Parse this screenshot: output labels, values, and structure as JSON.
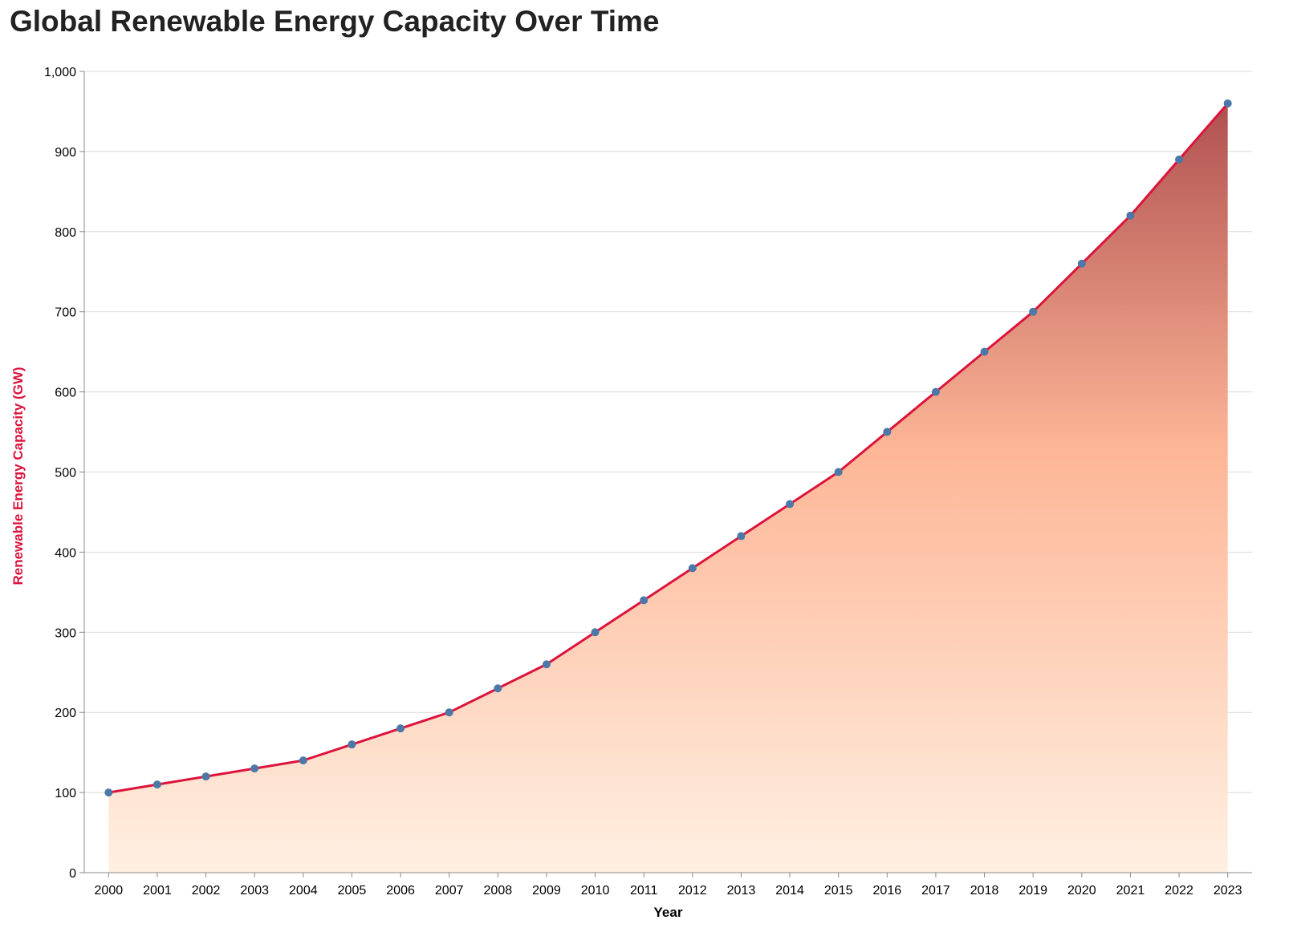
{
  "chart_data": {
    "type": "area",
    "title": "Global Renewable Energy Capacity Over Time",
    "xlabel": "Year",
    "ylabel": "Renewable Energy Capacity (GW)",
    "x": [
      "2000",
      "2001",
      "2002",
      "2003",
      "2004",
      "2005",
      "2006",
      "2007",
      "2008",
      "2009",
      "2010",
      "2011",
      "2012",
      "2013",
      "2014",
      "2015",
      "2016",
      "2017",
      "2018",
      "2019",
      "2020",
      "2021",
      "2022",
      "2023"
    ],
    "values": [
      100,
      110,
      120,
      130,
      140,
      160,
      180,
      200,
      230,
      260,
      300,
      340,
      380,
      420,
      460,
      500,
      550,
      600,
      650,
      700,
      760,
      820,
      890,
      960
    ],
    "ylim": [
      0,
      1000
    ],
    "yticks": [
      0,
      100,
      200,
      300,
      400,
      500,
      600,
      700,
      800,
      900,
      1000
    ],
    "ytick_labels": [
      "0",
      "100",
      "200",
      "300",
      "400",
      "500",
      "600",
      "700",
      "800",
      "900",
      "1,000"
    ],
    "grid": true,
    "colors": {
      "line": "#dc143c",
      "point": "#4c78a8",
      "ylabel": "#dc143c",
      "gradient_top": "#b05050",
      "gradient_mid": "#fdb696",
      "gradient_bottom": "#fff0e2"
    }
  }
}
